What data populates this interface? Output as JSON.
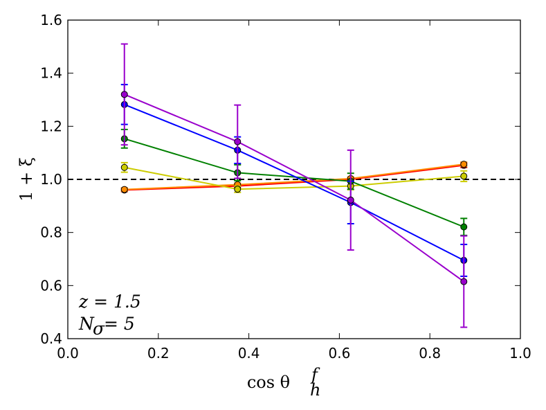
{
  "chart_data": {
    "type": "line",
    "xlabel": "cos θ",
    "xlabel_sup": "f",
    "xlabel_sub": "h",
    "ylabel": "1 + ξ",
    "xlim": [
      0.0,
      1.0
    ],
    "ylim": [
      0.4,
      1.6
    ],
    "xticks": [
      "0.0",
      "0.2",
      "0.4",
      "0.6",
      "0.8",
      "1.0"
    ],
    "yticks": [
      "0.4",
      "0.6",
      "0.8",
      "1.0",
      "1.2",
      "1.4",
      "1.6"
    ],
    "reference_line": 1.0,
    "annotation_z": "z = 1.5",
    "annotation_n": "N",
    "annotation_n_sub": "σ",
    "annotation_n_val": "= 5",
    "x": [
      0.125,
      0.375,
      0.625,
      0.875
    ],
    "series": [
      {
        "name": "red",
        "color": "#ff0000",
        "values": [
          0.96,
          0.975,
          1.0,
          1.053
        ],
        "errors": [
          0.006,
          0.006,
          0.006,
          0.008
        ]
      },
      {
        "name": "orange",
        "color": "#ff8c00",
        "values": [
          0.962,
          0.98,
          1.003,
          1.057
        ],
        "errors": [
          0.006,
          0.006,
          0.006,
          0.008
        ]
      },
      {
        "name": "yellow",
        "color": "#cccc00",
        "values": [
          1.045,
          0.963,
          0.975,
          1.012
        ],
        "errors": [
          0.018,
          0.012,
          0.014,
          0.02
        ]
      },
      {
        "name": "green",
        "color": "#008000",
        "values": [
          1.153,
          1.025,
          0.993,
          0.821
        ],
        "errors": [
          0.035,
          0.03,
          0.03,
          0.032
        ]
      },
      {
        "name": "blue",
        "color": "#0000ff",
        "values": [
          1.282,
          1.11,
          0.913,
          0.695
        ],
        "errors": [
          0.075,
          0.05,
          0.08,
          0.06
        ]
      },
      {
        "name": "purple",
        "color": "#9900cc",
        "values": [
          1.32,
          1.142,
          0.922,
          0.615
        ],
        "errors": [
          0.19,
          0.138,
          0.188,
          0.172
        ]
      }
    ]
  }
}
